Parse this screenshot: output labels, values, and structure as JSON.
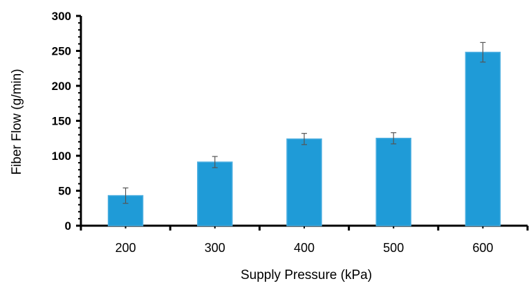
{
  "chart_data": {
    "type": "bar",
    "title": "",
    "xlabel": "Supply Pressure (kPa)",
    "ylabel": "Fiber Flow (g/min)",
    "categories": [
      "200",
      "300",
      "400",
      "500",
      "600"
    ],
    "values": [
      43,
      91,
      124,
      125,
      248
    ],
    "errors": [
      11,
      8,
      8,
      8,
      14
    ],
    "ylim": [
      0,
      300
    ],
    "yticks": [
      0,
      50,
      100,
      150,
      200,
      250,
      300
    ],
    "grid": false,
    "legend": "none",
    "bar_color": "#1F9BD7",
    "bar_edge_color": "#4BAEE0",
    "error_bar_color": "#555555",
    "axis_color": "#000000"
  }
}
